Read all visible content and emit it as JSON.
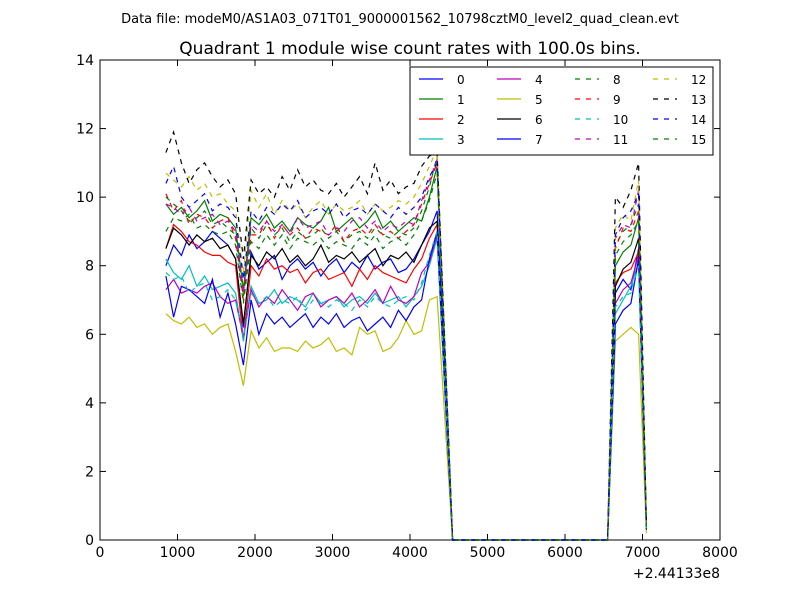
{
  "chart_data": {
    "type": "line",
    "suptitle": "Data file: modeM0/AS1A03_071T01_9000001562_10798cztM0_level2_quad_clean.evt",
    "title": "Quadrant 1 module wise count rates with 100.0s bins.",
    "xlabel": "",
    "ylabel": "",
    "x_offset_label": "+2.44133e8",
    "xlim": [
      0,
      8000
    ],
    "ylim": [
      0,
      14
    ],
    "x_ticks": [
      "0",
      "1000",
      "2000",
      "3000",
      "4000",
      "5000",
      "6000",
      "7000",
      "8000"
    ],
    "y_ticks": [
      "0",
      "2",
      "4",
      "6",
      "8",
      "10",
      "12",
      "14"
    ],
    "grid": false,
    "legend_placement": "top-right",
    "x": [
      850,
      950,
      1050,
      1150,
      1250,
      1350,
      1450,
      1550,
      1650,
      1750,
      1850,
      1950,
      2050,
      2150,
      2250,
      2350,
      2450,
      2550,
      2650,
      2750,
      2850,
      2950,
      3050,
      3150,
      3250,
      3350,
      3450,
      3550,
      3650,
      3750,
      3850,
      3950,
      4050,
      4150,
      4250,
      4350,
      4450,
      4550,
      6550,
      6650,
      6750,
      6850,
      6950,
      7050
    ],
    "series": [
      {
        "name": "0",
        "color": "#0000ff",
        "dash": false,
        "values": [
          8.0,
          8.6,
          8.3,
          8.9,
          8.5,
          8.7,
          9.0,
          8.8,
          8.6,
          8.2,
          6.2,
          8.4,
          7.9,
          8.1,
          8.3,
          7.6,
          8.0,
          8.2,
          7.9,
          8.1,
          7.7,
          8.0,
          8.2,
          7.8,
          8.1,
          7.9,
          8.3,
          7.9,
          8.1,
          8.2,
          7.8,
          7.9,
          8.2,
          8.6,
          9.0,
          9.6,
          4.8,
          0.0,
          0.0,
          7.2,
          7.6,
          7.3,
          8.5,
          0.4
        ]
      },
      {
        "name": "1",
        "color": "#008000",
        "dash": false,
        "values": [
          9.8,
          9.5,
          9.7,
          9.4,
          9.6,
          9.9,
          9.3,
          9.5,
          9.4,
          9.1,
          7.3,
          9.4,
          9.2,
          9.5,
          9.1,
          9.3,
          9.0,
          9.4,
          9.2,
          9.1,
          9.3,
          9.7,
          9.0,
          9.2,
          9.4,
          9.1,
          9.3,
          9.6,
          9.1,
          9.3,
          9.0,
          9.2,
          9.4,
          9.3,
          10.0,
          10.9,
          5.4,
          0.0,
          0.0,
          8.0,
          8.4,
          8.6,
          9.4,
          0.4
        ]
      },
      {
        "name": "2",
        "color": "#ff0000",
        "dash": false,
        "values": [
          8.5,
          9.2,
          9.0,
          8.7,
          8.6,
          8.4,
          8.3,
          8.3,
          8.1,
          8.0,
          5.8,
          8.0,
          7.7,
          8.2,
          7.9,
          8.0,
          7.8,
          7.9,
          7.5,
          7.8,
          7.9,
          7.6,
          7.7,
          7.8,
          7.4,
          7.9,
          7.6,
          8.0,
          7.8,
          7.7,
          7.6,
          7.5,
          7.9,
          8.2,
          8.8,
          9.2,
          4.6,
          0.0,
          0.0,
          7.5,
          7.8,
          7.9,
          8.4,
          0.4
        ]
      },
      {
        "name": "3",
        "color": "#00bfbf",
        "dash": false,
        "values": [
          8.2,
          7.8,
          7.6,
          8.0,
          7.4,
          7.7,
          7.3,
          7.4,
          7.5,
          7.2,
          5.8,
          7.4,
          6.9,
          7.0,
          7.3,
          6.9,
          7.1,
          7.0,
          6.8,
          7.2,
          6.9,
          7.0,
          7.1,
          6.8,
          7.0,
          7.1,
          6.9,
          7.2,
          6.9,
          7.0,
          7.1,
          6.8,
          7.1,
          7.4,
          8.0,
          8.8,
          4.3,
          0.0,
          0.0,
          6.6,
          7.0,
          7.4,
          8.1,
          0.3
        ]
      },
      {
        "name": "4",
        "color": "#bf00bf",
        "dash": false,
        "values": [
          7.3,
          7.6,
          7.2,
          7.3,
          7.2,
          7.4,
          7.5,
          7.1,
          6.9,
          7.0,
          5.9,
          7.3,
          6.8,
          7.1,
          6.9,
          7.3,
          7.0,
          6.7,
          7.1,
          7.2,
          6.8,
          7.0,
          7.1,
          6.9,
          7.2,
          6.8,
          7.0,
          7.3,
          6.9,
          7.4,
          7.0,
          6.9,
          7.1,
          7.8,
          8.1,
          8.9,
          4.4,
          0.0,
          0.0,
          6.9,
          7.3,
          7.5,
          8.3,
          0.3
        ]
      },
      {
        "name": "5",
        "color": "#bfbf00",
        "dash": false,
        "values": [
          6.6,
          6.4,
          6.3,
          6.5,
          6.2,
          6.3,
          6.0,
          6.2,
          6.3,
          5.5,
          4.5,
          6.1,
          5.6,
          5.9,
          5.5,
          5.6,
          5.6,
          5.5,
          5.8,
          5.6,
          5.7,
          5.9,
          5.5,
          5.6,
          5.4,
          6.2,
          6.0,
          6.1,
          5.5,
          5.6,
          5.9,
          6.4,
          6.0,
          6.1,
          7.0,
          7.1,
          3.5,
          0.0,
          0.0,
          5.8,
          6.0,
          6.2,
          6.0,
          0.2
        ]
      },
      {
        "name": "6",
        "color": "#000000",
        "dash": false,
        "values": [
          8.5,
          9.1,
          8.9,
          8.6,
          8.9,
          8.7,
          8.8,
          8.5,
          8.6,
          8.2,
          6.3,
          8.3,
          8.0,
          8.4,
          8.2,
          8.5,
          8.1,
          8.3,
          8.0,
          8.2,
          8.6,
          8.1,
          8.3,
          8.2,
          8.4,
          8.1,
          8.3,
          8.5,
          8.0,
          8.3,
          8.2,
          8.4,
          8.1,
          8.6,
          9.1,
          9.3,
          4.7,
          0.0,
          0.0,
          7.4,
          7.9,
          8.1,
          8.8,
          0.4
        ]
      },
      {
        "name": "7",
        "color": "#0000ff",
        "dash": false,
        "values": [
          7.7,
          6.5,
          7.4,
          7.3,
          7.1,
          6.9,
          7.6,
          6.5,
          7.2,
          6.3,
          5.1,
          7.0,
          6.0,
          6.6,
          6.3,
          6.5,
          6.2,
          6.4,
          6.6,
          6.2,
          6.5,
          6.3,
          6.6,
          6.2,
          6.4,
          6.5,
          6.1,
          6.3,
          6.5,
          6.2,
          6.7,
          6.4,
          6.8,
          7.0,
          8.2,
          9.0,
          4.4,
          0.0,
          0.0,
          6.3,
          6.7,
          6.9,
          8.2,
          0.3
        ]
      },
      {
        "name": "8",
        "color": "#008000",
        "dash": true,
        "values": [
          10.0,
          9.8,
          9.6,
          9.3,
          9.4,
          9.6,
          9.2,
          9.3,
          9.1,
          8.9,
          7.1,
          9.1,
          8.8,
          9.2,
          8.9,
          9.1,
          8.7,
          9.0,
          8.8,
          8.9,
          9.1,
          8.8,
          9.0,
          8.7,
          8.9,
          9.0,
          8.8,
          9.1,
          8.9,
          8.8,
          9.0,
          8.9,
          9.1,
          9.6,
          10.3,
          11.2,
          5.6,
          0.0,
          0.0,
          8.6,
          9.0,
          9.2,
          9.8,
          0.4
        ]
      },
      {
        "name": "9",
        "color": "#ff0000",
        "dash": true,
        "values": [
          10.1,
          9.6,
          9.9,
          9.2,
          9.5,
          9.4,
          9.1,
          9.3,
          9.4,
          8.8,
          7.0,
          8.9,
          8.9,
          9.3,
          8.8,
          9.2,
          8.9,
          9.1,
          8.8,
          9.1,
          9.0,
          8.9,
          9.2,
          8.7,
          9.0,
          9.1,
          8.9,
          9.2,
          8.9,
          9.0,
          8.8,
          9.0,
          9.2,
          9.8,
          10.4,
          11.0,
          5.5,
          0.0,
          0.0,
          8.5,
          9.1,
          9.0,
          9.6,
          0.4
        ]
      },
      {
        "name": "10",
        "color": "#00bfbf",
        "dash": true,
        "values": [
          7.8,
          7.6,
          7.7,
          7.2,
          7.4,
          7.5,
          7.0,
          7.1,
          7.3,
          7.0,
          5.9,
          7.2,
          6.9,
          7.1,
          6.8,
          7.0,
          6.9,
          7.1,
          6.7,
          7.0,
          6.9,
          6.8,
          7.0,
          6.9,
          6.7,
          7.0,
          6.8,
          7.1,
          6.9,
          6.8,
          7.0,
          7.1,
          7.0,
          7.5,
          8.3,
          9.0,
          4.5,
          0.0,
          0.0,
          6.8,
          7.1,
          7.2,
          8.0,
          0.3
        ]
      },
      {
        "name": "11",
        "color": "#bf00bf",
        "dash": true,
        "values": [
          9.8,
          9.7,
          9.5,
          9.7,
          9.3,
          9.4,
          9.5,
          9.2,
          9.3,
          9.0,
          7.2,
          9.2,
          9.0,
          9.3,
          9.0,
          9.2,
          8.9,
          9.4,
          9.1,
          9.2,
          9.3,
          8.9,
          9.1,
          9.0,
          9.3,
          9.4,
          9.1,
          9.3,
          9.0,
          9.2,
          9.1,
          9.3,
          9.2,
          9.9,
          10.5,
          11.1,
          5.5,
          0.0,
          0.0,
          8.8,
          9.2,
          9.1,
          10.2,
          0.4
        ]
      },
      {
        "name": "12",
        "color": "#bfbf00",
        "dash": true,
        "values": [
          10.7,
          10.5,
          10.3,
          10.6,
          10.2,
          10.4,
          10.0,
          10.1,
          9.8,
          9.6,
          7.8,
          10.2,
          9.7,
          10.1,
          9.5,
          9.9,
          9.6,
          9.8,
          9.4,
          9.7,
          9.9,
          9.5,
          9.8,
          9.6,
          9.7,
          9.9,
          9.5,
          9.8,
          9.6,
          9.7,
          9.9,
          9.8,
          10.0,
          10.4,
          10.9,
          11.4,
          5.7,
          0.0,
          0.0,
          9.1,
          9.5,
          9.3,
          10.5,
          0.4
        ]
      },
      {
        "name": "13",
        "color": "#000000",
        "dash": true,
        "values": [
          11.3,
          11.9,
          11.0,
          10.4,
          10.8,
          11.0,
          10.6,
          10.3,
          10.5,
          10.1,
          8.2,
          10.5,
          10.1,
          10.3,
          10.0,
          10.6,
          10.2,
          10.8,
          10.3,
          10.5,
          10.2,
          10.1,
          10.4,
          10.0,
          10.3,
          10.6,
          10.1,
          11.0,
          10.2,
          10.5,
          10.1,
          10.3,
          10.4,
          10.9,
          11.2,
          11.3,
          5.7,
          0.0,
          0.0,
          10.0,
          9.7,
          10.2,
          11.0,
          0.4
        ]
      },
      {
        "name": "14",
        "color": "#0000ff",
        "dash": true,
        "values": [
          10.4,
          10.9,
          10.0,
          9.7,
          9.9,
          10.1,
          9.6,
          9.8,
          9.7,
          9.4,
          7.6,
          9.6,
          9.3,
          9.7,
          9.5,
          9.8,
          9.6,
          9.9,
          9.4,
          9.6,
          9.7,
          9.5,
          9.8,
          9.4,
          9.6,
          9.7,
          9.5,
          9.8,
          9.6,
          9.4,
          9.7,
          9.5,
          9.7,
          10.0,
          10.6,
          11.0,
          5.5,
          0.0,
          0.0,
          8.9,
          9.4,
          9.6,
          10.1,
          0.4
        ]
      },
      {
        "name": "15",
        "color": "#008000",
        "dash": true,
        "values": [
          9.0,
          9.4,
          9.3,
          9.5,
          9.1,
          9.2,
          9.0,
          8.9,
          9.0,
          8.6,
          6.9,
          8.7,
          8.5,
          8.9,
          8.6,
          8.9,
          8.5,
          8.8,
          8.7,
          8.6,
          8.8,
          8.5,
          8.7,
          8.6,
          8.5,
          8.8,
          8.6,
          8.9,
          8.5,
          8.7,
          8.8,
          8.6,
          8.9,
          9.3,
          9.9,
          10.7,
          5.3,
          0.0,
          0.0,
          8.3,
          8.7,
          8.9,
          9.3,
          0.4
        ]
      }
    ]
  }
}
